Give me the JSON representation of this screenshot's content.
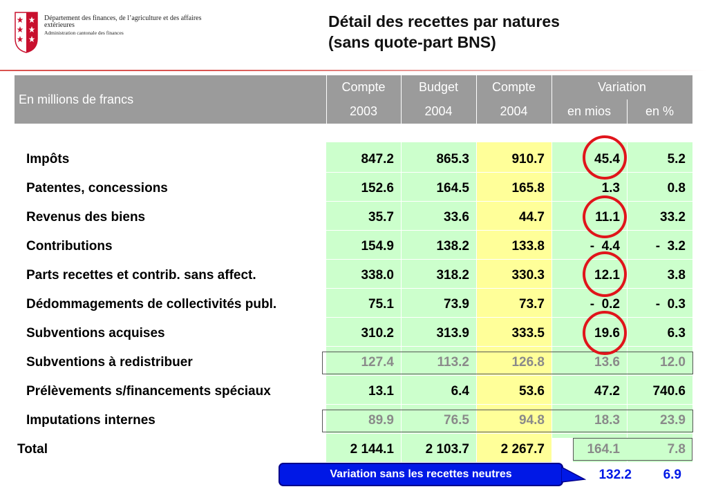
{
  "header": {
    "org_line1": "Département des finances, de l’agriculture et des affaires extérieures",
    "org_line2": "Administration cantonale des finances",
    "title_line1": "Détail des recettes par natures",
    "title_line2": "(sans quote-part BNS)"
  },
  "table": {
    "unit_label": "En millions de francs",
    "columns": [
      {
        "top": "Compte",
        "bottom": "2003"
      },
      {
        "top": "Budget",
        "bottom": "2004"
      },
      {
        "top": "Compte",
        "bottom": "2004"
      }
    ],
    "variation_label": "Variation",
    "variation_sub": [
      "en mios",
      "en %"
    ],
    "rows": [
      {
        "label": "Impôts",
        "c2003": "847.2",
        "b2004": "865.3",
        "c2004": "910.7",
        "var_mios": "45.4",
        "var_pct": "5.2",
        "circled": true
      },
      {
        "label": "Patentes, concessions",
        "c2003": "152.6",
        "b2004": "164.5",
        "c2004": "165.8",
        "var_mios": "1.3",
        "var_pct": "0.8"
      },
      {
        "label": "Revenus des biens",
        "c2003": "35.7",
        "b2004": "33.6",
        "c2004": "44.7",
        "var_mios": "11.1",
        "var_pct": "33.2",
        "circled": true
      },
      {
        "label": "Contributions",
        "c2003": "154.9",
        "b2004": "138.2",
        "c2004": "133.8",
        "var_mios": "-  4.4",
        "var_pct": "-  3.2"
      },
      {
        "label": "Parts recettes et contrib. sans affect.",
        "c2003": "338.0",
        "b2004": "318.2",
        "c2004": "330.3",
        "var_mios": "12.1",
        "var_pct": "3.8",
        "circled": true
      },
      {
        "label": "Dédommagements de collectivités publ.",
        "c2003": "75.1",
        "b2004": "73.9",
        "c2004": "73.7",
        "var_mios": "-  0.2",
        "var_pct": "-  0.3"
      },
      {
        "label": "Subventions acquises",
        "c2003": "310.2",
        "b2004": "313.9",
        "c2004": "333.5",
        "var_mios": "19.6",
        "var_pct": "6.3",
        "circled": true
      },
      {
        "label": "Subventions à redistribuer",
        "c2003": "127.4",
        "b2004": "113.2",
        "c2004": "126.8",
        "var_mios": "13.6",
        "var_pct": "12.0",
        "boxed": true
      },
      {
        "label": "Prélèvements s/financements spéciaux",
        "c2003": "13.1",
        "b2004": "6.4",
        "c2004": "53.6",
        "var_mios": "47.2",
        "var_pct": "740.6"
      },
      {
        "label": "Imputations internes",
        "c2003": "89.9",
        "b2004": "76.5",
        "c2004": "94.8",
        "var_mios": "18.3",
        "var_pct": "23.9",
        "boxed": true
      }
    ],
    "total": {
      "label": "Total",
      "c2003": "2 144.1",
      "b2004": "2 103.7",
      "c2004": "2 267.7",
      "var_mios": "164.1",
      "var_pct": "7.8"
    }
  },
  "callout": {
    "text": "Variation sans les recettes neutres",
    "var_mios": "132.2",
    "var_pct": "6.9"
  },
  "colors": {
    "header_bg": "#9b9b9b",
    "cell_green": "#ccffcc",
    "cell_yellow": "#ffff99",
    "circle_red": "#e0151b",
    "callout_blue": "#0018e6",
    "rule_red": "#d9534f"
  }
}
